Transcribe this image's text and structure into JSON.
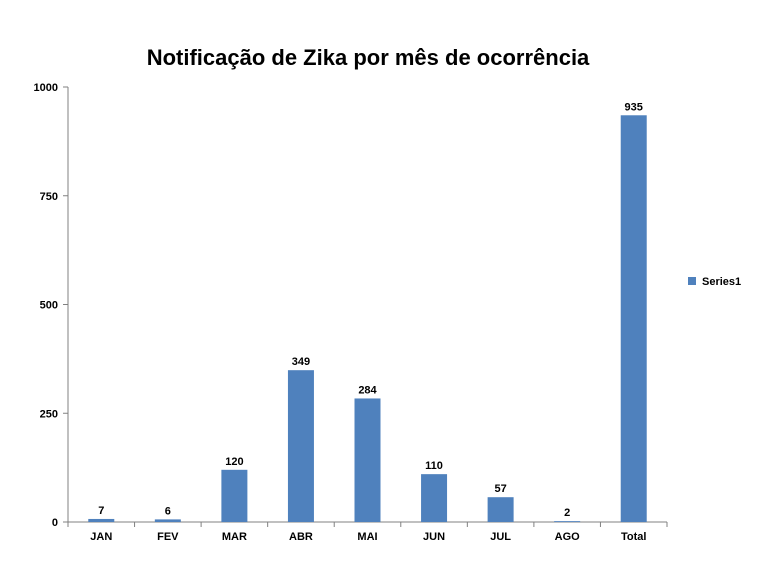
{
  "chart_data": {
    "type": "bar",
    "title": "Notificação de Zika por mês de ocorrência",
    "xlabel": "",
    "ylabel": "",
    "categories": [
      "JAN",
      "FEV",
      "MAR",
      "ABR",
      "MAI",
      "JUN",
      "JUL",
      "AGO",
      "Total"
    ],
    "series": [
      {
        "name": "Series1",
        "values": [
          7,
          6,
          120,
          349,
          284,
          110,
          57,
          2,
          935
        ],
        "color": "#4F81BD"
      }
    ],
    "ylim": [
      0,
      1000
    ],
    "yticks": [
      0,
      250,
      500,
      750,
      1000
    ],
    "grid": false,
    "legend_position": "right"
  }
}
